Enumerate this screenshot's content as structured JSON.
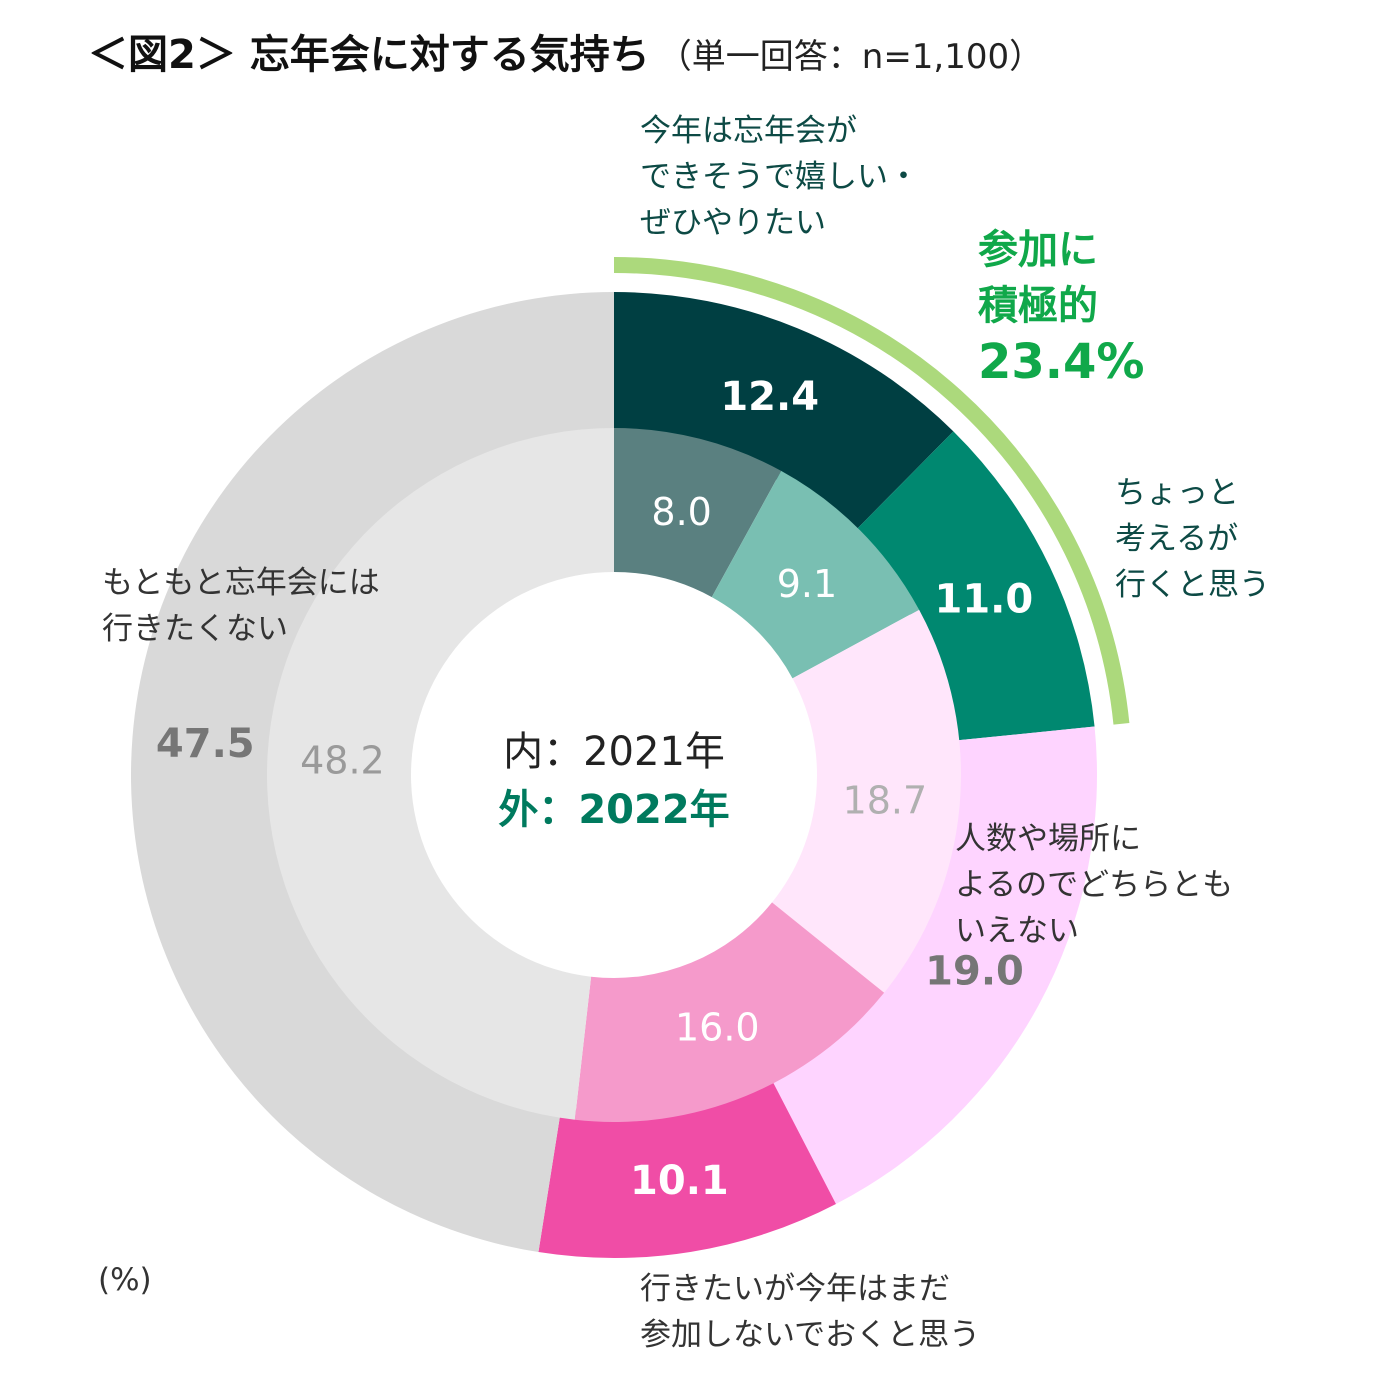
{
  "title": {
    "main": "＜図2＞ 忘年会に対する気持ち",
    "sub": "（単一回答：n=1,100）"
  },
  "chart_data": {
    "type": "pie",
    "subtype": "double-donut",
    "title": "＜図2＞ 忘年会に対する気持ち",
    "subtitle": "（単一回答：n=1,100）",
    "unit": "(%)",
    "center_label": {
      "inner": "内：2021年",
      "outer": "外：2022年"
    },
    "categories": [
      "今年は忘年会ができそうで嬉しい・ぜひやりたい",
      "ちょっと考えるが行くと思う",
      "人数や場所によるのでどちらともいえない",
      "行きたいが今年はまだ参加しないでおくと思う",
      "もともと忘年会には行きたくない"
    ],
    "series": [
      {
        "name": "2021年",
        "ring": "inner",
        "values": [
          8.0,
          9.1,
          18.7,
          16.0,
          48.2
        ],
        "colors": [
          "#5a8080",
          "#79bfb2",
          "#ffe6fb",
          "#f59acb",
          "#e6e6e6"
        ],
        "label_colors": [
          "#ffffff",
          "#ffffff",
          "#b0b0b0",
          "#ffffff",
          "#9a9a9a"
        ]
      },
      {
        "name": "2022年",
        "ring": "outer",
        "values": [
          12.4,
          11.0,
          19.0,
          10.1,
          47.5
        ],
        "colors": [
          "#003f42",
          "#008870",
          "#fed4ff",
          "#f04da6",
          "#d9d9d9"
        ],
        "label_colors": [
          "#ffffff",
          "#ffffff",
          "#767676",
          "#ffffff",
          "#767676"
        ]
      }
    ],
    "annotation": {
      "label": [
        "参加に",
        "積極的"
      ],
      "value": "23.4%",
      "color": "#10a84a",
      "arc_color": "#acd97c"
    }
  },
  "labels": {
    "cat1": [
      "今年は忘年会が",
      "できそうで嬉しい・",
      "ぜひやりたい"
    ],
    "cat2": [
      "ちょっと",
      "考えるが",
      "行くと思う"
    ],
    "cat3": [
      "人数や場所に",
      "よるのでどちらとも",
      "いえない"
    ],
    "cat4": [
      "行きたいが今年はまだ",
      "参加しないでおくと思う"
    ],
    "cat5": [
      "もともと忘年会には",
      "行きたくない"
    ]
  },
  "unit": "(%)"
}
